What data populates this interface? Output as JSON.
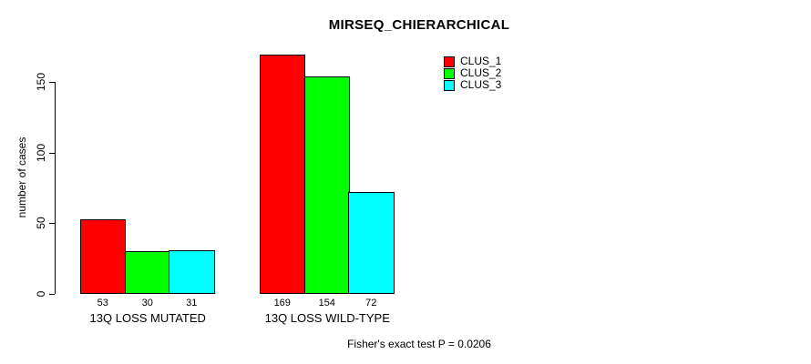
{
  "chart_data": {
    "type": "bar",
    "title": "MIRSEQ_CHIERARCHICAL",
    "xlabel": "",
    "ylabel": "number of cases",
    "categories": [
      "13Q LOSS MUTATED",
      "13Q LOSS WILD-TYPE"
    ],
    "series": [
      {
        "name": "CLUS_1",
        "color": "#FF0000",
        "values": [
          53,
          169
        ]
      },
      {
        "name": "CLUS_2",
        "color": "#00FF00",
        "values": [
          30,
          154
        ]
      },
      {
        "name": "CLUS_3",
        "color": "#00FFFF",
        "values": [
          31,
          72
        ]
      }
    ],
    "yticks": [
      0,
      50,
      100,
      150
    ],
    "ylim": [
      0,
      175
    ],
    "grid": false,
    "legend_position": "top-right",
    "bar_value_labels": true,
    "annotation": "Fisher's exact test P = 0.0206"
  }
}
